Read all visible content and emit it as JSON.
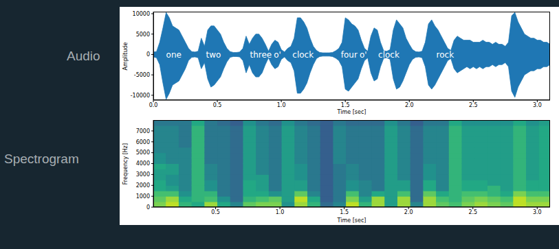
{
  "chart_data": [
    {
      "type": "area",
      "title": "Audio",
      "x_label": "Time [sec]",
      "y_label": "Amplitude",
      "color": "#1f77b4",
      "x": [
        0,
        0.025,
        0.05,
        0.075,
        0.1,
        0.125,
        0.15,
        0.175,
        0.2,
        0.225,
        0.25,
        0.275,
        0.3,
        0.325,
        0.35,
        0.375,
        0.4,
        0.425,
        0.45,
        0.475,
        0.5,
        0.525,
        0.55,
        0.575,
        0.6,
        0.625,
        0.65,
        0.675,
        0.7,
        0.725,
        0.75,
        0.775,
        0.8,
        0.825,
        0.85,
        0.875,
        0.9,
        0.925,
        0.95,
        0.975,
        1,
        1.025,
        1.05,
        1.075,
        1.1,
        1.125,
        1.15,
        1.175,
        1.2,
        1.225,
        1.25,
        1.275,
        1.3,
        1.325,
        1.35,
        1.375,
        1.4,
        1.425,
        1.45,
        1.475,
        1.5,
        1.525,
        1.55,
        1.575,
        1.6,
        1.625,
        1.65,
        1.675,
        1.7,
        1.725,
        1.75,
        1.775,
        1.8,
        1.825,
        1.85,
        1.875,
        1.9,
        1.925,
        1.95,
        1.975,
        2,
        2.025,
        2.05,
        2.075,
        2.1,
        2.125,
        2.15,
        2.175,
        2.2,
        2.225,
        2.25,
        2.275,
        2.3,
        2.325,
        2.35,
        2.375,
        2.4,
        2.425,
        2.45,
        2.475,
        2.5,
        2.525,
        2.55,
        2.575,
        2.6,
        2.625,
        2.65,
        2.675,
        2.7,
        2.725,
        2.75,
        2.775,
        2.8,
        2.825,
        2.85,
        2.875,
        2.9,
        2.925,
        2.95,
        2.975,
        3,
        3.025,
        3.05,
        3.075,
        3.1
      ],
      "values": [
        [
          -600,
          600
        ],
        [
          -800,
          700
        ],
        [
          -2500,
          3000
        ],
        [
          -7000,
          6500
        ],
        [
          -11000,
          10300
        ],
        [
          -9500,
          9000
        ],
        [
          -7500,
          7000
        ],
        [
          -7000,
          6500
        ],
        [
          -6500,
          6000
        ],
        [
          -5000,
          4500
        ],
        [
          -3500,
          3000
        ],
        [
          -1500,
          1500
        ],
        [
          -700,
          700
        ],
        [
          -600,
          600
        ],
        [
          -800,
          800
        ],
        [
          -3500,
          4000
        ],
        [
          -2000,
          2000
        ],
        [
          -6000,
          6000
        ],
        [
          -8000,
          7000
        ],
        [
          -7500,
          7000
        ],
        [
          -6500,
          6000
        ],
        [
          -5500,
          5000
        ],
        [
          -3500,
          3000
        ],
        [
          -1800,
          1500
        ],
        [
          -700,
          700
        ],
        [
          -500,
          500
        ],
        [
          -500,
          500
        ],
        [
          -600,
          600
        ],
        [
          -1500,
          1500
        ],
        [
          -4500,
          4500
        ],
        [
          -2500,
          2500
        ],
        [
          -4500,
          4000
        ],
        [
          -5500,
          5000
        ],
        [
          -5500,
          5000
        ],
        [
          -4500,
          4000
        ],
        [
          -2500,
          2500
        ],
        [
          -800,
          800
        ],
        [
          -2500,
          2500
        ],
        [
          -3500,
          3500
        ],
        [
          -3000,
          3000
        ],
        [
          -1200,
          1200
        ],
        [
          -600,
          600
        ],
        [
          -1500,
          1500
        ],
        [
          -2000,
          2000
        ],
        [
          -4000,
          4000
        ],
        [
          -9500,
          9000
        ],
        [
          -9500,
          9000
        ],
        [
          -8500,
          8000
        ],
        [
          -7000,
          6500
        ],
        [
          -4500,
          4000
        ],
        [
          -2500,
          2000
        ],
        [
          -1000,
          1000
        ],
        [
          -500,
          500
        ],
        [
          -400,
          400
        ],
        [
          -400,
          400
        ],
        [
          -400,
          400
        ],
        [
          -500,
          500
        ],
        [
          -900,
          900
        ],
        [
          -1500,
          1500
        ],
        [
          -3000,
          3000
        ],
        [
          -8500,
          9000
        ],
        [
          -9000,
          8500
        ],
        [
          -8000,
          7500
        ],
        [
          -7000,
          7000
        ],
        [
          -6000,
          6000
        ],
        [
          -3500,
          3500
        ],
        [
          -1500,
          1500
        ],
        [
          -800,
          800
        ],
        [
          -4500,
          4500
        ],
        [
          -6500,
          6500
        ],
        [
          -6000,
          6000
        ],
        [
          -3000,
          3000
        ],
        [
          -900,
          900
        ],
        [
          -800,
          800
        ],
        [
          -1200,
          1200
        ],
        [
          -6000,
          6000
        ],
        [
          -8500,
          8500
        ],
        [
          -8000,
          7500
        ],
        [
          -6500,
          6500
        ],
        [
          -4500,
          4000
        ],
        [
          -2500,
          2500
        ],
        [
          -1200,
          1200
        ],
        [
          -700,
          700
        ],
        [
          -600,
          600
        ],
        [
          -800,
          800
        ],
        [
          -3000,
          3000
        ],
        [
          -7500,
          7500
        ],
        [
          -8500,
          8500
        ],
        [
          -7500,
          7000
        ],
        [
          -6000,
          6000
        ],
        [
          -4500,
          4500
        ],
        [
          -3000,
          3000
        ],
        [
          -1500,
          1500
        ],
        [
          -1000,
          1000
        ],
        [
          -3500,
          3500
        ],
        [
          -4500,
          4500
        ],
        [
          -4000,
          4000
        ],
        [
          -3500,
          3500
        ],
        [
          -3000,
          3500
        ],
        [
          -3500,
          3500
        ],
        [
          -3000,
          3000
        ],
        [
          -3500,
          3000
        ],
        [
          -3000,
          3000
        ],
        [
          -3500,
          3500
        ],
        [
          -3000,
          3000
        ],
        [
          -3000,
          3000
        ],
        [
          -2500,
          2500
        ],
        [
          -3000,
          3000
        ],
        [
          -2500,
          2500
        ],
        [
          -2500,
          2500
        ],
        [
          -2000,
          2000
        ],
        [
          -3000,
          3000
        ],
        [
          -9000,
          9500
        ],
        [
          -10500,
          10300
        ],
        [
          -8000,
          8000
        ],
        [
          -6500,
          6500
        ],
        [
          -5000,
          5000
        ],
        [
          -4500,
          4500
        ],
        [
          -4000,
          4000
        ],
        [
          -4000,
          4000
        ],
        [
          -3500,
          3500
        ],
        [
          -3500,
          3500
        ],
        [
          -3000,
          3000
        ],
        [
          -3000,
          3000
        ],
        [
          -2500,
          2500
        ]
      ],
      "xlim": [
        0,
        3.1
      ],
      "ylim": [
        -11200,
        10500
      ],
      "xticks": [
        {
          "value": 0,
          "label": "0.0"
        },
        0.5,
        {
          "value": 1,
          "label": "1.0"
        },
        1.5,
        {
          "value": 2,
          "label": "2.0"
        },
        2.5,
        {
          "value": 3,
          "label": "3.0"
        }
      ],
      "yticks": [
        -10000,
        -5000,
        0,
        5000,
        10000
      ],
      "annotations": [
        {
          "text": "one",
          "x": 0.16,
          "y": 0
        },
        {
          "text": "two",
          "x": 0.47,
          "y": 0
        },
        {
          "text": "three",
          "x": 0.84,
          "y": 0
        },
        {
          "text": "o'",
          "x": 0.97,
          "y": 0
        },
        {
          "text": "clock",
          "x": 1.17,
          "y": 0
        },
        {
          "text": "four",
          "x": 1.53,
          "y": 0
        },
        {
          "text": "o'",
          "x": 1.64,
          "y": 0
        },
        {
          "text": "clock",
          "x": 1.84,
          "y": 0
        },
        {
          "text": "rock",
          "x": 2.28,
          "y": 0
        }
      ]
    },
    {
      "type": "heatmap",
      "title": "Spectrogram",
      "x_label": "Time [sec]",
      "y_label": "Frequency [Hz]",
      "x": [
        0.066,
        0.166,
        0.266,
        0.366,
        0.466,
        0.566,
        0.666,
        0.766,
        0.866,
        0.966,
        1.066,
        1.166,
        1.266,
        1.366,
        1.466,
        1.566,
        1.666,
        1.766,
        1.866,
        1.966,
        2.066,
        2.166,
        2.266,
        2.366,
        2.466,
        2.566,
        2.666,
        2.766,
        2.866,
        2.966,
        3.066
      ],
      "y": [
        250,
        750,
        1250,
        1750,
        2250,
        2750,
        3250,
        3750,
        4250,
        4750,
        5250,
        5750,
        6250,
        6750,
        7250,
        7750
      ],
      "cells": [
        [
          8,
          7.5,
          7,
          6,
          6,
          5.5,
          5.5,
          6,
          5,
          5,
          4.5,
          4.5,
          4.5,
          4.5,
          4.5,
          4
        ],
        [
          9,
          8.5,
          7,
          5.5,
          5,
          5,
          5.5,
          5.5,
          4.5,
          4.5,
          4.5,
          4.5,
          4.5,
          4.5,
          4.5,
          4
        ],
        [
          6.5,
          6,
          5,
          4.5,
          4.5,
          4.5,
          4.5,
          4.5,
          4.5,
          4.5,
          4.5,
          4,
          4,
          4,
          4,
          4
        ],
        [
          6,
          6.5,
          6.5,
          6.5,
          6.5,
          6.5,
          6.5,
          6.5,
          6.5,
          6.5,
          6.5,
          6.5,
          6.5,
          6.5,
          6.5,
          6
        ],
        [
          8.5,
          7,
          6.5,
          5,
          5,
          4.5,
          4.5,
          4.5,
          4,
          4,
          4,
          4,
          4,
          4,
          4,
          4
        ],
        [
          6,
          5,
          4,
          4,
          4,
          4,
          4,
          4,
          4,
          4,
          4,
          4,
          4,
          4,
          4,
          3.5
        ],
        [
          4.5,
          3.5,
          3.5,
          3.5,
          3.5,
          3.5,
          3.5,
          3.5,
          3.5,
          3.5,
          3.5,
          3.5,
          3.5,
          3.5,
          3.5,
          3
        ],
        [
          7.5,
          6.5,
          6,
          6,
          6,
          5.5,
          5.5,
          5.5,
          5.5,
          5.5,
          5.5,
          5.5,
          5.5,
          5.5,
          5.5,
          5
        ],
        [
          8,
          7,
          6,
          5.5,
          5.5,
          5.5,
          4.5,
          4.5,
          4.5,
          4.5,
          4.5,
          4.5,
          4.5,
          4.5,
          4.5,
          4
        ],
        [
          8,
          7.5,
          5,
          4,
          4,
          4,
          4,
          4,
          4,
          4,
          4,
          4,
          4,
          4,
          4,
          3.5
        ],
        [
          5,
          5.5,
          5.5,
          5.5,
          5.5,
          5.5,
          5.5,
          5.5,
          5.5,
          5.5,
          5.5,
          5.5,
          5.5,
          5.5,
          5.5,
          5
        ],
        [
          8.5,
          9,
          7.5,
          5.5,
          5.5,
          5,
          5,
          5,
          4.5,
          4.5,
          4.5,
          4.5,
          4.5,
          4.5,
          4.5,
          4
        ],
        [
          6.5,
          6,
          4.5,
          4,
          4,
          4,
          4,
          4,
          4,
          4,
          4,
          4,
          4,
          4,
          4,
          3.5
        ],
        [
          3.5,
          3,
          3,
          3,
          3,
          3,
          3,
          3,
          3,
          3,
          3,
          3,
          3,
          3,
          3,
          3
        ],
        [
          4.5,
          4,
          4,
          4,
          4,
          4,
          4,
          4,
          4.5,
          4.5,
          4.5,
          4.5,
          4.5,
          4.5,
          4.5,
          4
        ],
        [
          9,
          8,
          7,
          5,
          5,
          4.5,
          4.5,
          4.5,
          4,
          4,
          4,
          4,
          4,
          4,
          4,
          3.5
        ],
        [
          6.5,
          5.5,
          4.5,
          4.5,
          4.5,
          4,
          4,
          4,
          4,
          4,
          4,
          4,
          4,
          4,
          4,
          3.5
        ],
        [
          8.5,
          8.5,
          6,
          4,
          4,
          4,
          4,
          4,
          4,
          4,
          4,
          4,
          4,
          4,
          4,
          3.5
        ],
        [
          5.5,
          5.5,
          5.5,
          5.5,
          5.5,
          5.5,
          5.5,
          5.5,
          5.5,
          5.5,
          5.5,
          5.5,
          5.5,
          5.5,
          5.5,
          5
        ],
        [
          8.5,
          8.5,
          7,
          5.5,
          5.5,
          4.5,
          4.5,
          4.5,
          4.5,
          4.5,
          4.5,
          4.5,
          4.5,
          4.5,
          4.5,
          4
        ],
        [
          4.5,
          3.5,
          3.5,
          3.5,
          3.5,
          3.5,
          3.5,
          3.5,
          3.5,
          3.5,
          3.5,
          3.5,
          3.5,
          3.5,
          3.5,
          3
        ],
        [
          8.5,
          8.5,
          7.5,
          6,
          6,
          5,
          5,
          5,
          4.5,
          4.5,
          4.5,
          4.5,
          4.5,
          4.5,
          4.5,
          4
        ],
        [
          7.5,
          7,
          6,
          4.5,
          4.5,
          4.5,
          4.5,
          4.5,
          4.5,
          4.5,
          4.5,
          4.5,
          4.5,
          4.5,
          4.5,
          4
        ],
        [
          7,
          6.5,
          6.5,
          6.5,
          6.5,
          6.5,
          6.5,
          6.5,
          6.5,
          6.5,
          6.5,
          6.5,
          6.5,
          6.5,
          6.5,
          6
        ],
        [
          8,
          7.5,
          7,
          6,
          6,
          5.5,
          5.5,
          5.5,
          5.5,
          5.5,
          5.5,
          5.5,
          5.5,
          5.5,
          5.5,
          5
        ],
        [
          8.5,
          8,
          7,
          6,
          6,
          5.5,
          5.5,
          5.5,
          5.5,
          5.5,
          5.5,
          5.5,
          5.5,
          5.5,
          5.5,
          5
        ],
        [
          8,
          7.5,
          6.5,
          6.5,
          5.5,
          5.5,
          5.5,
          5.5,
          5.5,
          5.5,
          5.5,
          5.5,
          5.5,
          5.5,
          5.5,
          5
        ],
        [
          7.5,
          7,
          6,
          5.5,
          5.5,
          5.5,
          5.5,
          5.5,
          5.5,
          5.5,
          5.5,
          5.5,
          5.5,
          5.5,
          5.5,
          5
        ],
        [
          9,
          9,
          8,
          6.5,
          6.5,
          6.5,
          6.5,
          6.5,
          6.5,
          6.5,
          6.5,
          6.5,
          6.5,
          6.5,
          6.5,
          6
        ],
        [
          8.5,
          8,
          7,
          6,
          6,
          5.5,
          5.5,
          5.5,
          5.5,
          5.5,
          5.5,
          5.5,
          5.5,
          5.5,
          5.5,
          5
        ],
        [
          8.5,
          8,
          7,
          6,
          6,
          6,
          6,
          6,
          6,
          6,
          6,
          6,
          6,
          6,
          6,
          5.5
        ]
      ],
      "zlim": [
        0,
        10
      ],
      "xlim": [
        0.016,
        3.1
      ],
      "ylim": [
        0,
        8000
      ],
      "xticks": [
        0.5,
        {
          "value": 1,
          "label": "1.0"
        },
        1.5,
        {
          "value": 2,
          "label": "2.0"
        },
        2.5,
        {
          "value": 3,
          "label": "3.0"
        }
      ],
      "yticks": [
        0,
        1000,
        2000,
        3000,
        4000,
        5000,
        6000,
        7000
      ]
    }
  ]
}
